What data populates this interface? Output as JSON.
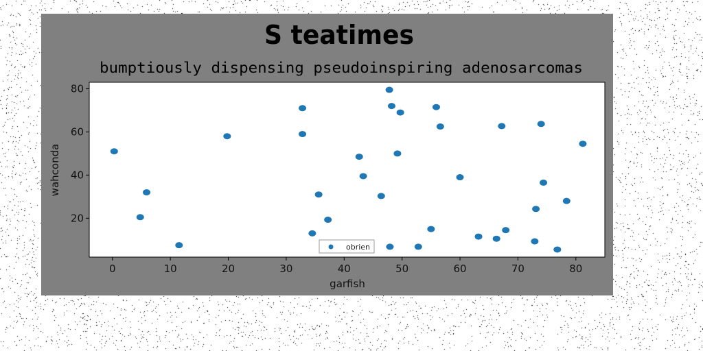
{
  "chart_data": {
    "type": "scatter",
    "title": "S teatimes",
    "subtitle": "bumptiously dispensing pseudoinspiring adenosarcomas",
    "xlabel": "garfish",
    "ylabel": "wahconda",
    "xlim": [
      -4,
      85
    ],
    "ylim": [
      2,
      83
    ],
    "xticks": [
      0,
      10,
      20,
      30,
      40,
      50,
      60,
      70,
      80
    ],
    "yticks": [
      20,
      40,
      60,
      80
    ],
    "grid": false,
    "legend_position": "bottom-center",
    "series": [
      {
        "name": "obrien",
        "color": "#1f77b4",
        "points": [
          [
            0.3,
            51
          ],
          [
            4.8,
            20.5
          ],
          [
            5.9,
            32
          ],
          [
            11.5,
            7.5
          ],
          [
            19.8,
            58
          ],
          [
            32.8,
            71
          ],
          [
            32.8,
            59
          ],
          [
            34.5,
            13
          ],
          [
            35.6,
            31
          ],
          [
            37.2,
            19.3
          ],
          [
            42.6,
            48.5
          ],
          [
            43.3,
            39.5
          ],
          [
            46.4,
            30.3
          ],
          [
            47.8,
            79.5
          ],
          [
            48.2,
            72
          ],
          [
            49.2,
            50
          ],
          [
            49.7,
            69
          ],
          [
            47.9,
            6.8
          ],
          [
            52.8,
            6.8
          ],
          [
            55,
            15
          ],
          [
            55.9,
            71.5
          ],
          [
            56.6,
            62.5
          ],
          [
            60,
            39
          ],
          [
            63.2,
            11.5
          ],
          [
            66.3,
            10.5
          ],
          [
            67.2,
            62.7
          ],
          [
            67.9,
            14.5
          ],
          [
            72.9,
            9.3
          ],
          [
            73.1,
            24.3
          ],
          [
            74,
            63.7
          ],
          [
            74.4,
            36.5
          ],
          [
            76.8,
            5.5
          ],
          [
            78.4,
            28
          ],
          [
            81.2,
            54.5
          ]
        ]
      }
    ]
  }
}
